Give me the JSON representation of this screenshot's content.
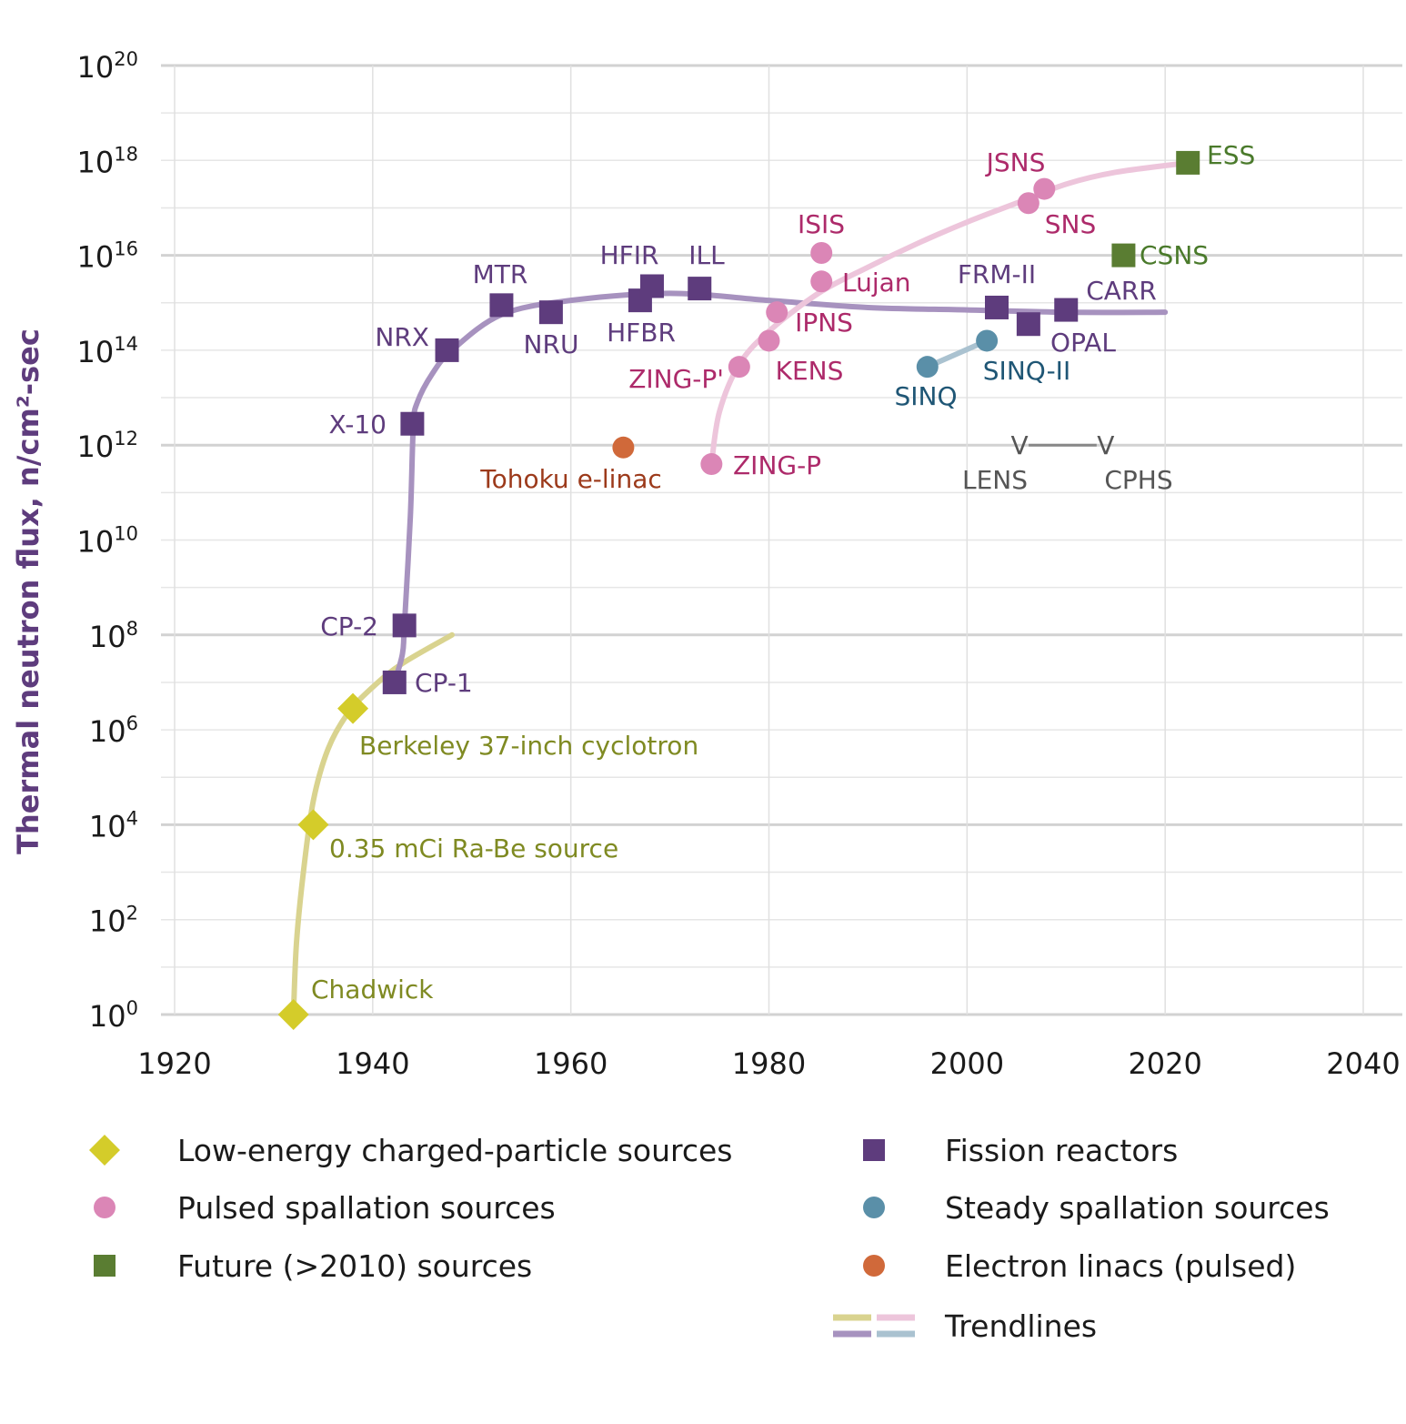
{
  "chart_data": {
    "type": "scatter",
    "title": "",
    "xlabel": "",
    "ylabel": "Thermal neutron flux, n/cm²-sec",
    "xlim": [
      1920,
      2040
    ],
    "ylim_log10": [
      0,
      20
    ],
    "y_scale": "log",
    "grid": true,
    "x_ticks": [
      "1920",
      "1940",
      "1960",
      "1980",
      "2000",
      "2020",
      "2040"
    ],
    "y_ticks": [
      {
        "base": "10",
        "exp": "0"
      },
      {
        "base": "10",
        "exp": "2"
      },
      {
        "base": "10",
        "exp": "4"
      },
      {
        "base": "10",
        "exp": "6"
      },
      {
        "base": "10",
        "exp": "8"
      },
      {
        "base": "10",
        "exp": "10"
      },
      {
        "base": "10",
        "exp": "12"
      },
      {
        "base": "10",
        "exp": "14"
      },
      {
        "base": "10",
        "exp": "16"
      },
      {
        "base": "10",
        "exp": "18"
      },
      {
        "base": "10",
        "exp": "20"
      }
    ],
    "colors": {
      "charged": "#d4cc2a",
      "fission": "#5e3c7d",
      "pulsed": "#db86b6",
      "steady": "#5a8fa8",
      "future": "#5a7d32",
      "linac": "#d0693a",
      "label_charged": "#7f8a22",
      "label_fission": "#5e3c7d",
      "label_pulsed": "#ad2a6a",
      "label_steady": "#1f5675",
      "label_future": "#4a7a2b",
      "label_linac": "#9c3a1b",
      "label_planned": "#555555",
      "trend_charged": "#d9d38f",
      "trend_fission": "#a792bf",
      "trend_pulsed": "#edc5db",
      "trend_steady": "#aac2d0"
    },
    "series": [
      {
        "name": "Low-energy charged-particle sources",
        "marker": "diamond",
        "points": [
          {
            "label": "Chadwick",
            "x": 1932,
            "y": 0
          },
          {
            "label": "0.35 mCi Ra-Be source",
            "x": 1934,
            "y": 4
          },
          {
            "label": "Berkeley 37-inch cyclotron",
            "x": 1938,
            "y": 6.45
          }
        ]
      },
      {
        "name": "Fission reactors",
        "marker": "square",
        "points": [
          {
            "label": "CP-1",
            "x": 1942.2,
            "y": 7
          },
          {
            "label": "CP-2",
            "x": 1943.2,
            "y": 8.2
          },
          {
            "label": "X-10",
            "x": 1944,
            "y": 12.45
          },
          {
            "label": "NRX",
            "x": 1947.5,
            "y": 14
          },
          {
            "label": "MTR",
            "x": 1953,
            "y": 14.95
          },
          {
            "label": "NRU",
            "x": 1958,
            "y": 14.8
          },
          {
            "label": "HFBR",
            "x": 1967,
            "y": 15.05
          },
          {
            "label": "HFIR",
            "x": 1968.2,
            "y": 15.35
          },
          {
            "label": "ILL",
            "x": 1973,
            "y": 15.3
          },
          {
            "label": "FRM-II",
            "x": 2003,
            "y": 14.9
          },
          {
            "label": "OPAL",
            "x": 2006.2,
            "y": 14.55
          },
          {
            "label": "CARR",
            "x": 2010,
            "y": 14.85
          }
        ]
      },
      {
        "name": "Pulsed spallation sources",
        "marker": "circle",
        "points": [
          {
            "label": "ZING-P",
            "x": 1974.2,
            "y": 11.6
          },
          {
            "label": "ZING-P'",
            "x": 1977,
            "y": 13.65
          },
          {
            "label": "KENS",
            "x": 1980,
            "y": 14.2
          },
          {
            "label": "IPNS",
            "x": 1980.8,
            "y": 14.8
          },
          {
            "label": "Lujan",
            "x": 1985.3,
            "y": 15.45
          },
          {
            "label": "ISIS",
            "x": 1985.3,
            "y": 16.05
          },
          {
            "label": "JSNS",
            "x": 2006.2,
            "y": 17.1
          },
          {
            "label": "SNS",
            "x": 2007.8,
            "y": 17.4
          }
        ]
      },
      {
        "name": "Steady spallation sources",
        "marker": "circle",
        "points": [
          {
            "label": "SINQ",
            "x": 1996,
            "y": 13.65
          },
          {
            "label": "SINQ-II",
            "x": 2002,
            "y": 14.2
          }
        ]
      },
      {
        "name": "Future (>2010) sources",
        "marker": "square",
        "points": [
          {
            "label": "CSNS",
            "x": 2015.8,
            "y": 16
          },
          {
            "label": "ESS",
            "x": 2022.3,
            "y": 17.95
          }
        ]
      },
      {
        "name": "Electron linacs (pulsed)",
        "marker": "circle",
        "points": [
          {
            "label": "Tohoku e-linac",
            "x": 1965.3,
            "y": 11.95
          }
        ]
      }
    ],
    "planned": [
      {
        "label": "LENS",
        "x": 2005.3,
        "y": 12
      },
      {
        "label": "CPHS",
        "x": 2014,
        "y": 12
      }
    ],
    "planned_marker": "V",
    "trendlines": {
      "charged": [
        [
          1932,
          0
        ],
        [
          1932.3,
          1.5
        ],
        [
          1933,
          3
        ],
        [
          1934,
          4.5
        ],
        [
          1935.5,
          5.6
        ],
        [
          1937.5,
          6.35
        ],
        [
          1940,
          6.9
        ],
        [
          1943,
          7.4
        ],
        [
          1948,
          8
        ]
      ],
      "fission": [
        [
          1942.2,
          7
        ],
        [
          1943,
          7.6
        ],
        [
          1943.2,
          8.2
        ],
        [
          1943.8,
          10.5
        ],
        [
          1944.1,
          12.4
        ],
        [
          1944.5,
          12.9
        ],
        [
          1946,
          13.5
        ],
        [
          1948,
          14
        ],
        [
          1953,
          14.75
        ],
        [
          1960,
          15.05
        ],
        [
          1970,
          15.2
        ],
        [
          1980,
          15.05
        ],
        [
          1990,
          14.9
        ],
        [
          2000,
          14.85
        ],
        [
          2010,
          14.8
        ],
        [
          2020,
          14.8
        ]
      ],
      "pulsed": [
        [
          1974.2,
          11.6
        ],
        [
          1975,
          12.7
        ],
        [
          1977,
          13.7
        ],
        [
          1980,
          14.4
        ],
        [
          1985,
          15.2
        ],
        [
          1990,
          15.75
        ],
        [
          1995,
          16.25
        ],
        [
          2000,
          16.7
        ],
        [
          2005,
          17.1
        ],
        [
          2010,
          17.5
        ],
        [
          2015,
          17.75
        ],
        [
          2022.3,
          17.95
        ]
      ],
      "steady": [
        [
          1996,
          13.65
        ],
        [
          2002,
          14.2
        ]
      ]
    }
  },
  "legend": {
    "items": [
      {
        "label": "Low-energy charged-particle sources",
        "marker": "diamond",
        "color": "#d4cc2a"
      },
      {
        "label": "Pulsed spallation sources",
        "marker": "circle",
        "color": "#db86b6"
      },
      {
        "label": "Future (>2010) sources",
        "marker": "square",
        "color": "#5a7d32"
      },
      {
        "label": "Fission reactors",
        "marker": "square",
        "color": "#5e3c7d"
      },
      {
        "label": "Steady spallation sources",
        "marker": "circle",
        "color": "#5a8fa8"
      },
      {
        "label": "Electron linacs (pulsed)",
        "marker": "circle",
        "color": "#d0693a"
      },
      {
        "label": "Trendlines",
        "marker": "trend",
        "color": ""
      }
    ]
  }
}
